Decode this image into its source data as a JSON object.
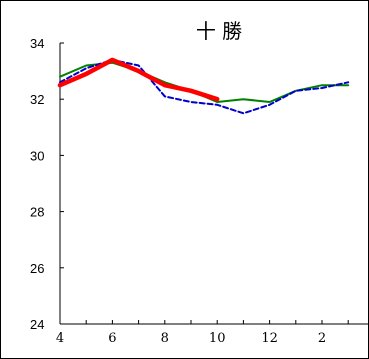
{
  "chart_data": {
    "type": "line",
    "title": "十 勝",
    "xlabel": "",
    "ylabel": "",
    "x_ticks": [
      4,
      6,
      8,
      10,
      12,
      2
    ],
    "x_range": [
      4,
      15.2
    ],
    "ylim": [
      24,
      34
    ],
    "yticks": [
      24,
      26,
      28,
      30,
      32,
      34
    ],
    "grid": false,
    "legend": "none",
    "series": [
      {
        "color": "#008000",
        "style": "solid",
        "x": [
          4,
          5,
          6,
          7,
          8,
          9,
          10,
          11,
          12,
          13,
          14,
          15
        ],
        "y": [
          32.8,
          33.2,
          33.3,
          33.0,
          32.6,
          32.3,
          31.9,
          32.0,
          31.9,
          32.3,
          32.5,
          32.5
        ]
      },
      {
        "color": "#0000cc",
        "style": "dashed",
        "x": [
          4,
          5,
          6,
          7,
          8,
          9,
          10,
          11,
          12,
          13,
          14,
          15
        ],
        "y": [
          32.6,
          33.1,
          33.4,
          33.2,
          32.1,
          31.9,
          31.8,
          31.5,
          31.8,
          32.3,
          32.4,
          32.6
        ]
      },
      {
        "color": "#ff0000",
        "style": "thick",
        "x": [
          4,
          5,
          6,
          7,
          8,
          9,
          10
        ],
        "y": [
          32.5,
          32.9,
          33.4,
          33.0,
          32.5,
          32.3,
          32.0
        ]
      }
    ]
  }
}
